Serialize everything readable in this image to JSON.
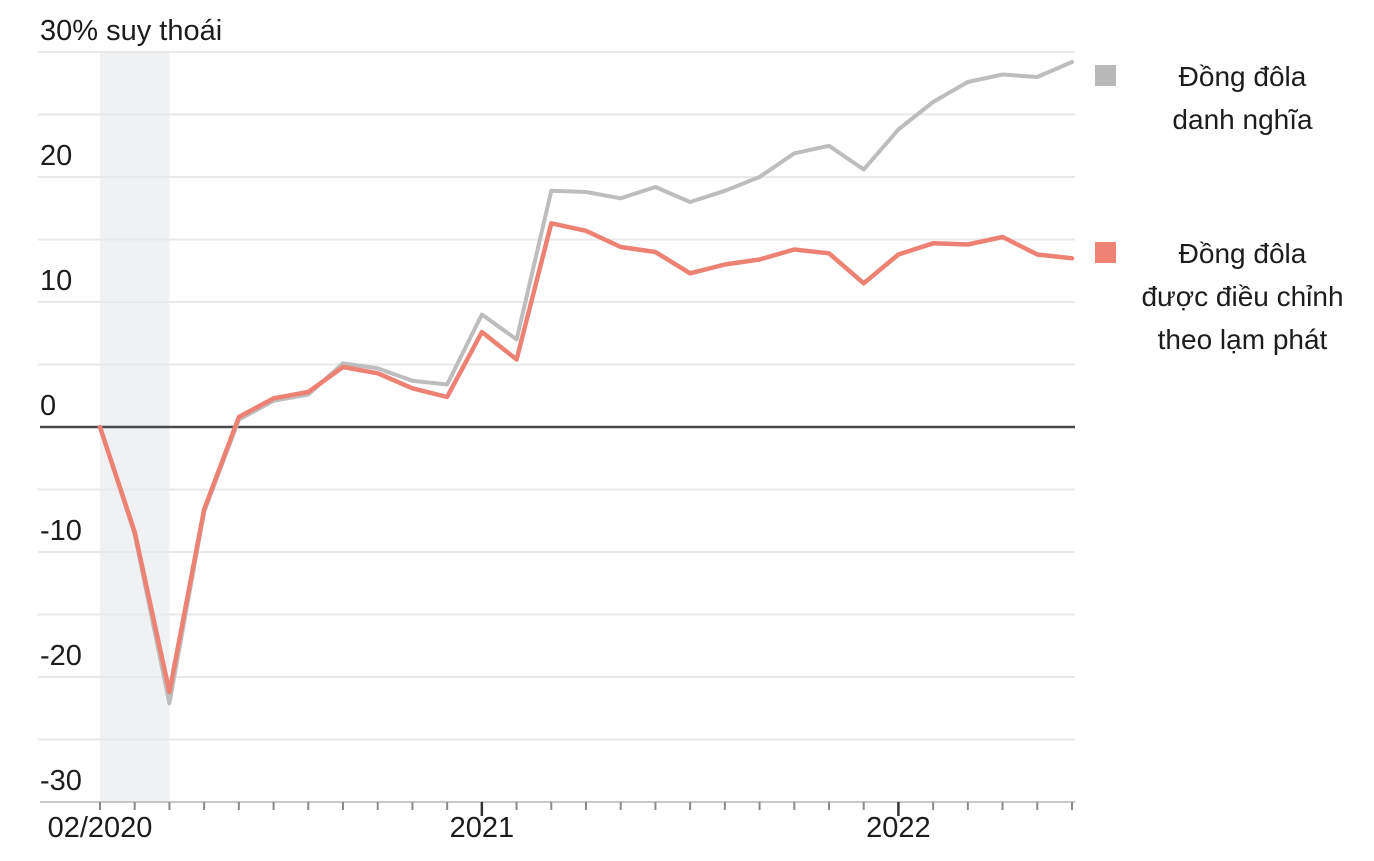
{
  "chart_data": {
    "type": "line",
    "unit": "%",
    "y_axis": {
      "ylim": [
        -30,
        30
      ],
      "gridline_step": 5,
      "ticks": [
        {
          "value": 30,
          "label": "30% suy thoái"
        },
        {
          "value": 20,
          "label": "20"
        },
        {
          "value": 10,
          "label": "10"
        },
        {
          "value": 0,
          "label": "0"
        },
        {
          "value": -10,
          "label": "-10"
        },
        {
          "value": -20,
          "label": "-20"
        },
        {
          "value": -30,
          "label": "-30"
        }
      ]
    },
    "x_axis": {
      "months": [
        "2020-02",
        "2020-03",
        "2020-04",
        "2020-05",
        "2020-06",
        "2020-07",
        "2020-08",
        "2020-09",
        "2020-10",
        "2020-11",
        "2020-12",
        "2021-01",
        "2021-02",
        "2021-03",
        "2021-04",
        "2021-05",
        "2021-06",
        "2021-07",
        "2021-08",
        "2021-09",
        "2021-10",
        "2021-11",
        "2021-12",
        "2022-01",
        "2022-02",
        "2022-03",
        "2022-04",
        "2022-05",
        "2022-06"
      ],
      "tick_every_month": true,
      "labels": [
        {
          "month_index": 0,
          "label": "02/2020"
        },
        {
          "month_index": 11,
          "label": "2021"
        },
        {
          "month_index": 23,
          "label": "2022"
        }
      ]
    },
    "recession_band": {
      "start_month_index": 0,
      "end_month_index": 2,
      "color": "#f0f1f3"
    },
    "series": [
      {
        "id": "nominal",
        "name": "Đồng đôla danh nghĩa",
        "color": "#bdbdbd",
        "stroke_width": 4,
        "values": [
          0,
          -8.6,
          -22.1,
          -6.8,
          0.6,
          2.1,
          2.6,
          5.1,
          4.7,
          3.7,
          3.4,
          9.0,
          7.0,
          18.9,
          18.8,
          18.3,
          19.2,
          18.0,
          18.9,
          20.0,
          21.9,
          22.5,
          20.6,
          23.8,
          26.0,
          27.6,
          28.2,
          28.0,
          29.2
        ]
      },
      {
        "id": "real",
        "name": "Đồng đôla được điều chỉnh theo lạm phát",
        "color": "#ed8173",
        "stroke_width": 4.5,
        "values": [
          0,
          -8.4,
          -21.2,
          -6.6,
          0.8,
          2.3,
          2.8,
          4.8,
          4.3,
          3.1,
          2.4,
          7.6,
          5.4,
          16.3,
          15.7,
          14.4,
          14.0,
          12.3,
          13.0,
          13.4,
          14.2,
          13.9,
          11.5,
          13.8,
          14.7,
          14.6,
          15.2,
          13.8,
          13.5
        ]
      }
    ],
    "legend": {
      "position": "right",
      "items": [
        {
          "series_id": "nominal",
          "swatch_color": "#b9b9b9",
          "lines": [
            "Đồng đôla",
            "danh nghĩa"
          ]
        },
        {
          "series_id": "real",
          "swatch_color": "#ee8273",
          "lines": [
            "Đồng đôla",
            "được điều chỉnh",
            "theo lạm phát"
          ]
        }
      ]
    },
    "colors": {
      "zero_line": "#4a4a4a",
      "gridline": "#e9e9e9",
      "axis_line": "#c8c8c8",
      "minor_tick": "#8a8a8a",
      "major_tick": "#333333",
      "text": "#1c1c1c",
      "background": "#ffffff"
    }
  }
}
